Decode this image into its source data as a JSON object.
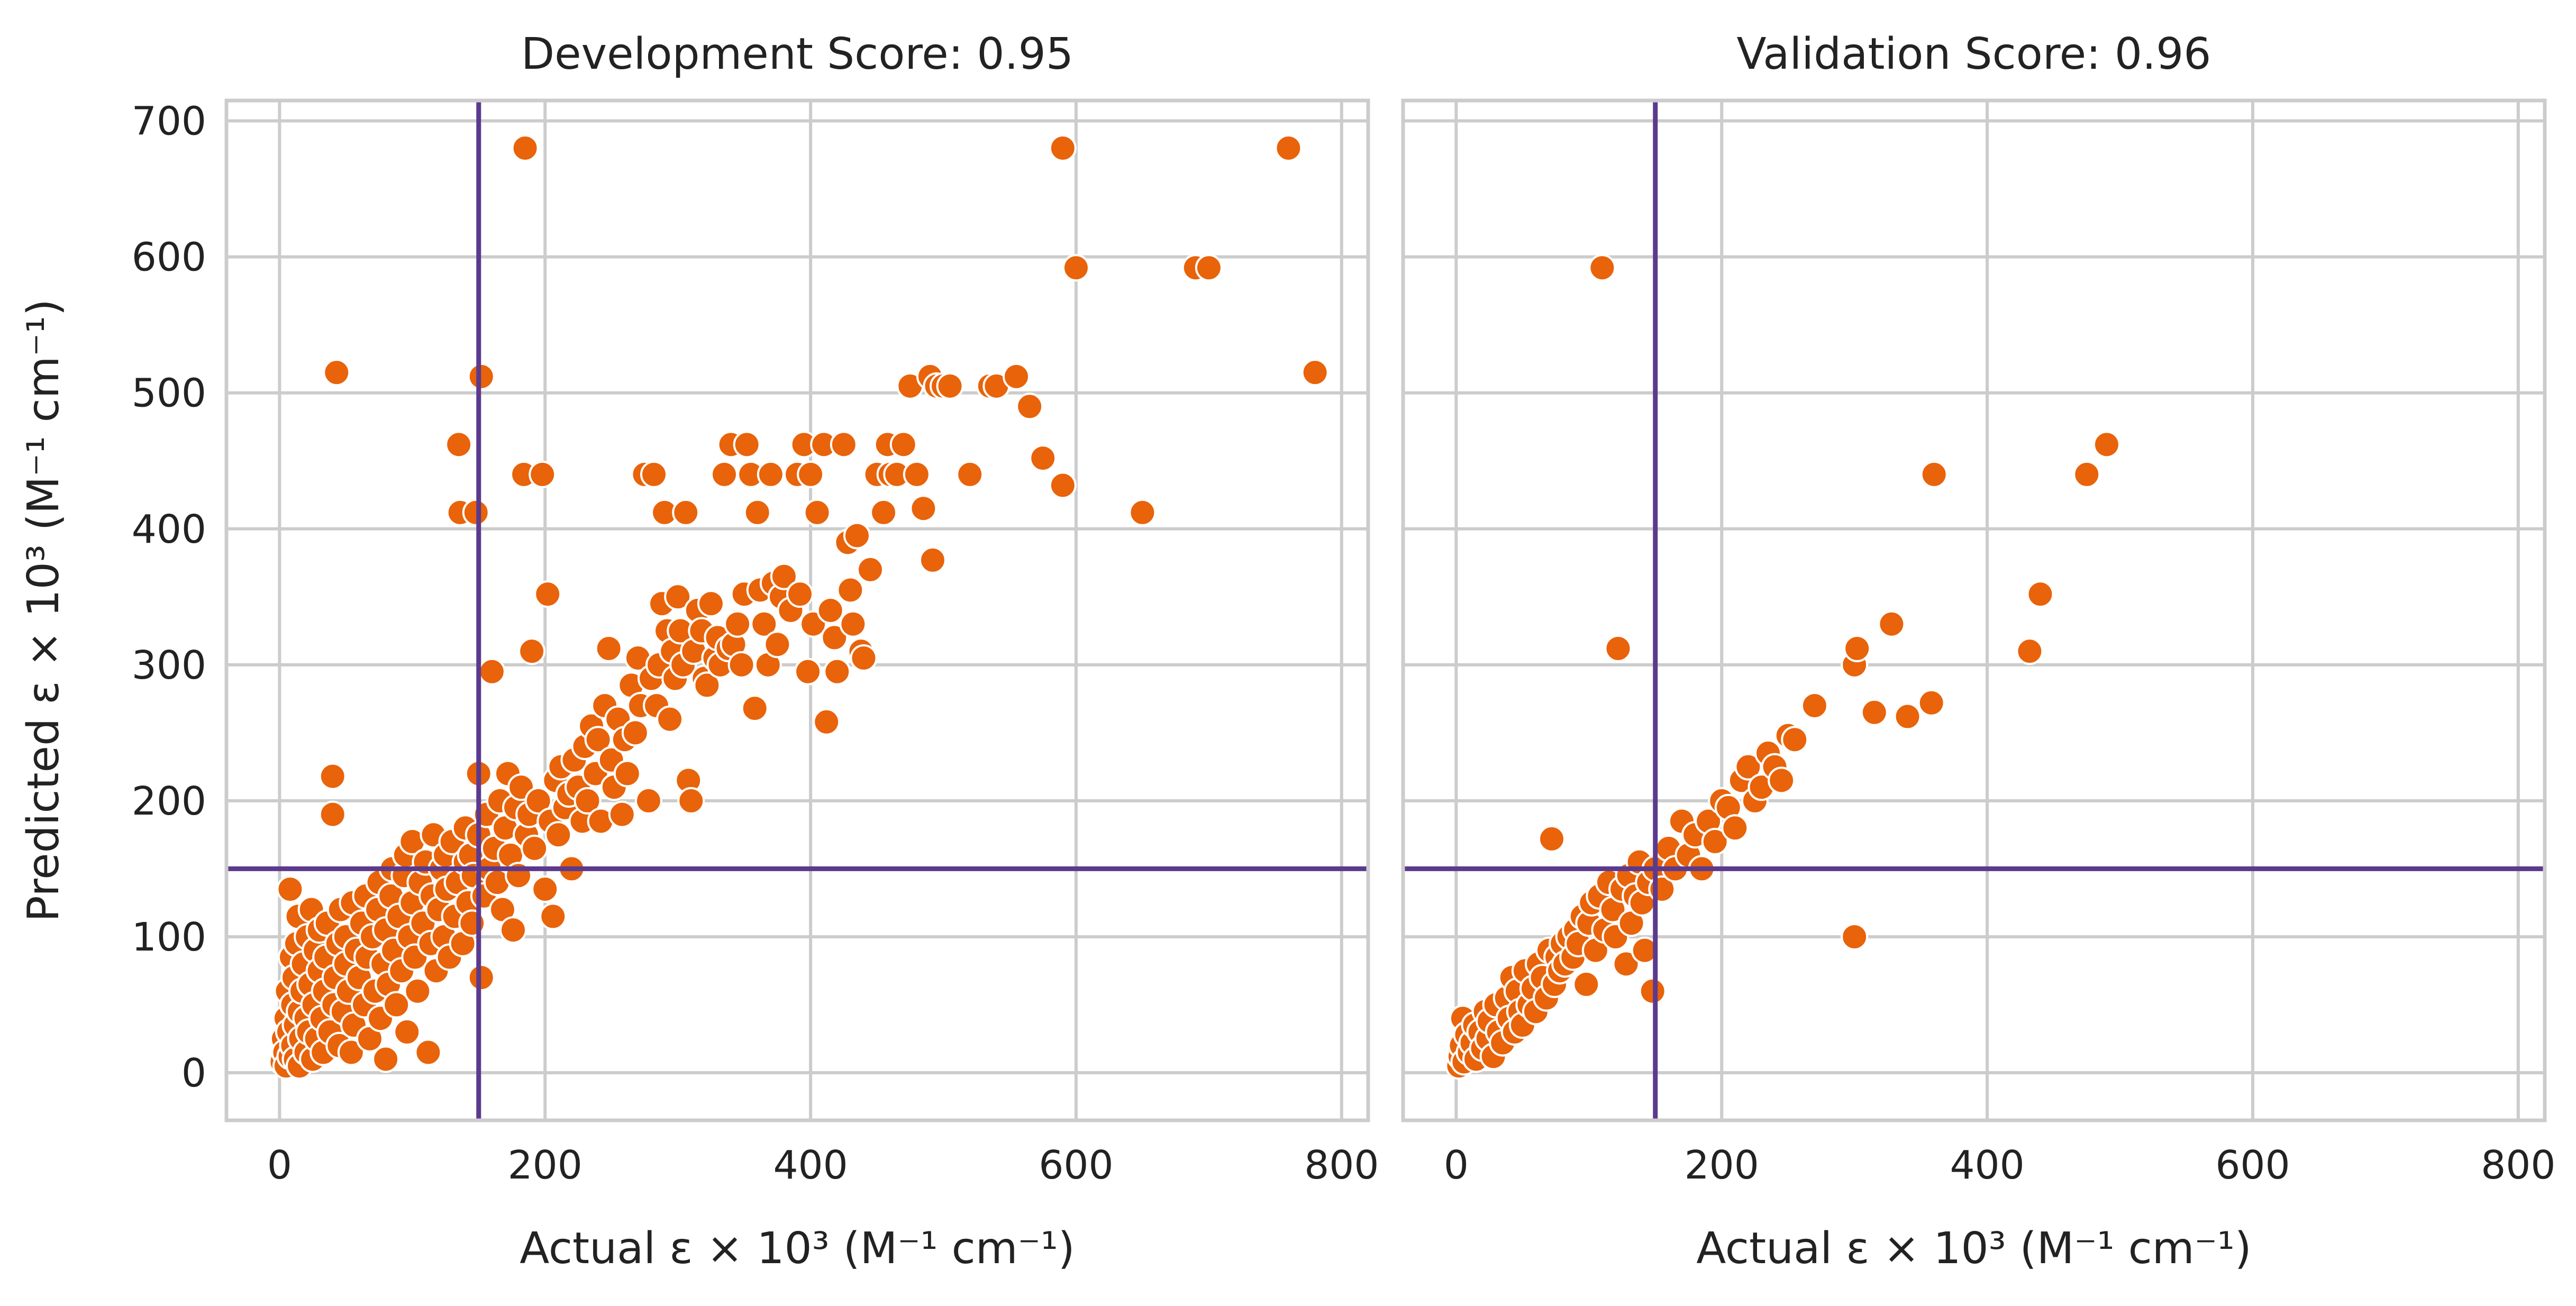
{
  "chart_data": [
    {
      "type": "scatter",
      "title": "Development Score: 0.95",
      "xlabel": "Actual ε × 10³ (M⁻¹ cm⁻¹)",
      "ylabel": "Predicted ε × 10³ (M⁻¹ cm⁻¹)",
      "xlim": [
        -40,
        820
      ],
      "ylim": [
        -35,
        715
      ],
      "xticks": [
        0,
        200,
        400,
        600,
        800
      ],
      "yticks": [
        0,
        100,
        200,
        300,
        400,
        500,
        600,
        700
      ],
      "grid": true,
      "reference_lines": {
        "x": 150,
        "y": 150,
        "color": "#5b3a8e"
      },
      "point_color": "#e8630a",
      "points": [
        [
          2,
          8
        ],
        [
          3,
          25
        ],
        [
          4,
          15
        ],
        [
          5,
          5
        ],
        [
          5,
          40
        ],
        [
          6,
          60
        ],
        [
          7,
          30
        ],
        [
          8,
          135
        ],
        [
          8,
          12
        ],
        [
          9,
          85
        ],
        [
          10,
          20
        ],
        [
          10,
          50
        ],
        [
          11,
          70
        ],
        [
          12,
          10
        ],
        [
          12,
          35
        ],
        [
          13,
          95
        ],
        [
          14,
          115
        ],
        [
          15,
          5
        ],
        [
          15,
          45
        ],
        [
          16,
          25
        ],
        [
          17,
          60
        ],
        [
          18,
          80
        ],
        [
          20,
          15
        ],
        [
          20,
          40
        ],
        [
          21,
          100
        ],
        [
          22,
          30
        ],
        [
          23,
          65
        ],
        [
          24,
          120
        ],
        [
          25,
          10
        ],
        [
          26,
          50
        ],
        [
          27,
          90
        ],
        [
          28,
          25
        ],
        [
          30,
          75
        ],
        [
          30,
          105
        ],
        [
          32,
          40
        ],
        [
          33,
          15
        ],
        [
          34,
          60
        ],
        [
          35,
          85
        ],
        [
          36,
          110
        ],
        [
          38,
          30
        ],
        [
          40,
          190
        ],
        [
          40,
          218
        ],
        [
          41,
          50
        ],
        [
          42,
          70
        ],
        [
          43,
          515
        ],
        [
          44,
          95
        ],
        [
          45,
          20
        ],
        [
          46,
          120
        ],
        [
          48,
          45
        ],
        [
          50,
          80
        ],
        [
          50,
          100
        ],
        [
          52,
          60
        ],
        [
          54,
          15
        ],
        [
          55,
          125
        ],
        [
          56,
          35
        ],
        [
          58,
          90
        ],
        [
          60,
          70
        ],
        [
          62,
          110
        ],
        [
          64,
          50
        ],
        [
          65,
          130
        ],
        [
          66,
          85
        ],
        [
          68,
          25
        ],
        [
          70,
          100
        ],
        [
          72,
          60
        ],
        [
          74,
          120
        ],
        [
          75,
          140
        ],
        [
          76,
          40
        ],
        [
          78,
          80
        ],
        [
          80,
          10
        ],
        [
          80,
          105
        ],
        [
          82,
          65
        ],
        [
          84,
          130
        ],
        [
          85,
          150
        ],
        [
          86,
          90
        ],
        [
          88,
          50
        ],
        [
          90,
          115
        ],
        [
          92,
          75
        ],
        [
          94,
          145
        ],
        [
          95,
          160
        ],
        [
          96,
          30
        ],
        [
          98,
          100
        ],
        [
          100,
          125
        ],
        [
          100,
          170
        ],
        [
          102,
          85
        ],
        [
          104,
          60
        ],
        [
          106,
          140
        ],
        [
          108,
          110
        ],
        [
          110,
          155
        ],
        [
          112,
          15
        ],
        [
          114,
          95
        ],
        [
          115,
          130
        ],
        [
          116,
          175
        ],
        [
          118,
          75
        ],
        [
          120,
          120
        ],
        [
          122,
          150
        ],
        [
          124,
          100
        ],
        [
          125,
          160
        ],
        [
          126,
          135
        ],
        [
          128,
          85
        ],
        [
          130,
          170
        ],
        [
          132,
          115
        ],
        [
          134,
          140
        ],
        [
          135,
          462
        ],
        [
          136,
          412
        ],
        [
          138,
          95
        ],
        [
          140,
          180
        ],
        [
          140,
          155
        ],
        [
          142,
          125
        ],
        [
          144,
          160
        ],
        [
          145,
          110
        ],
        [
          146,
          145
        ],
        [
          148,
          412
        ],
        [
          150,
          220
        ],
        [
          150,
          175
        ],
        [
          152,
          512
        ],
        [
          152,
          70
        ],
        [
          154,
          130
        ],
        [
          156,
          190
        ],
        [
          158,
          150
        ],
        [
          160,
          295
        ],
        [
          162,
          165
        ],
        [
          164,
          140
        ],
        [
          166,
          200
        ],
        [
          168,
          120
        ],
        [
          170,
          180
        ],
        [
          172,
          220
        ],
        [
          174,
          160
        ],
        [
          176,
          105
        ],
        [
          178,
          195
        ],
        [
          180,
          145
        ],
        [
          182,
          210
        ],
        [
          184,
          440
        ],
        [
          185,
          680
        ],
        [
          186,
          175
        ],
        [
          188,
          190
        ],
        [
          190,
          310
        ],
        [
          192,
          165
        ],
        [
          195,
          200
        ],
        [
          198,
          440
        ],
        [
          200,
          135
        ],
        [
          202,
          352
        ],
        [
          204,
          185
        ],
        [
          206,
          115
        ],
        [
          208,
          215
        ],
        [
          210,
          175
        ],
        [
          212,
          225
        ],
        [
          215,
          195
        ],
        [
          218,
          205
        ],
        [
          220,
          150
        ],
        [
          222,
          230
        ],
        [
          225,
          210
        ],
        [
          228,
          185
        ],
        [
          230,
          240
        ],
        [
          232,
          200
        ],
        [
          235,
          255
        ],
        [
          238,
          220
        ],
        [
          240,
          245
        ],
        [
          242,
          185
        ],
        [
          245,
          270
        ],
        [
          248,
          312
        ],
        [
          250,
          230
        ],
        [
          252,
          210
        ],
        [
          255,
          260
        ],
        [
          258,
          190
        ],
        [
          260,
          245
        ],
        [
          262,
          220
        ],
        [
          265,
          285
        ],
        [
          268,
          250
        ],
        [
          270,
          305
        ],
        [
          272,
          270
        ],
        [
          275,
          440
        ],
        [
          278,
          200
        ],
        [
          280,
          290
        ],
        [
          282,
          440
        ],
        [
          284,
          270
        ],
        [
          286,
          300
        ],
        [
          288,
          345
        ],
        [
          290,
          412
        ],
        [
          292,
          325
        ],
        [
          294,
          260
        ],
        [
          296,
          310
        ],
        [
          298,
          290
        ],
        [
          300,
          350
        ],
        [
          302,
          325
        ],
        [
          304,
          300
        ],
        [
          306,
          412
        ],
        [
          308,
          215
        ],
        [
          310,
          200
        ],
        [
          312,
          310
        ],
        [
          315,
          340
        ],
        [
          318,
          325
        ],
        [
          320,
          290
        ],
        [
          322,
          285
        ],
        [
          325,
          345
        ],
        [
          328,
          305
        ],
        [
          330,
          320
        ],
        [
          332,
          300
        ],
        [
          335,
          440
        ],
        [
          338,
          312
        ],
        [
          340,
          462
        ],
        [
          342,
          315
        ],
        [
          345,
          330
        ],
        [
          348,
          300
        ],
        [
          350,
          352
        ],
        [
          352,
          462
        ],
        [
          355,
          440
        ],
        [
          358,
          268
        ],
        [
          360,
          412
        ],
        [
          362,
          355
        ],
        [
          365,
          330
        ],
        [
          368,
          300
        ],
        [
          370,
          440
        ],
        [
          372,
          360
        ],
        [
          375,
          315
        ],
        [
          378,
          350
        ],
        [
          380,
          365
        ],
        [
          385,
          340
        ],
        [
          390,
          440
        ],
        [
          392,
          352
        ],
        [
          395,
          462
        ],
        [
          398,
          295
        ],
        [
          400,
          440
        ],
        [
          402,
          330
        ],
        [
          405,
          412
        ],
        [
          410,
          462
        ],
        [
          412,
          258
        ],
        [
          415,
          340
        ],
        [
          418,
          320
        ],
        [
          420,
          295
        ],
        [
          425,
          462
        ],
        [
          428,
          390
        ],
        [
          430,
          355
        ],
        [
          432,
          330
        ],
        [
          435,
          395
        ],
        [
          438,
          310
        ],
        [
          440,
          305
        ],
        [
          445,
          370
        ],
        [
          450,
          440
        ],
        [
          455,
          412
        ],
        [
          458,
          462
        ],
        [
          460,
          440
        ],
        [
          465,
          440
        ],
        [
          470,
          462
        ],
        [
          475,
          505
        ],
        [
          480,
          440
        ],
        [
          485,
          415
        ],
        [
          490,
          512
        ],
        [
          492,
          377
        ],
        [
          495,
          505
        ],
        [
          500,
          505
        ],
        [
          505,
          505
        ],
        [
          520,
          440
        ],
        [
          535,
          505
        ],
        [
          540,
          505
        ],
        [
          555,
          512
        ],
        [
          565,
          490
        ],
        [
          575,
          452
        ],
        [
          590,
          432
        ],
        [
          590,
          680
        ],
        [
          600,
          592
        ],
        [
          650,
          412
        ],
        [
          690,
          592
        ],
        [
          700,
          592
        ],
        [
          760,
          680
        ],
        [
          780,
          515
        ]
      ]
    },
    {
      "type": "scatter",
      "title": "Validation Score: 0.96",
      "xlabel": "Actual ε × 10³ (M⁻¹ cm⁻¹)",
      "ylabel": "",
      "xlim": [
        -40,
        820
      ],
      "ylim": [
        -35,
        715
      ],
      "xticks": [
        0,
        200,
        400,
        600,
        800
      ],
      "yticks": [
        0,
        100,
        200,
        300,
        400,
        500,
        600,
        700
      ],
      "grid": true,
      "reference_lines": {
        "x": 150,
        "y": 150,
        "color": "#5b3a8e"
      },
      "point_color": "#e8630a",
      "points": [
        [
          2,
          5
        ],
        [
          3,
          12
        ],
        [
          4,
          20
        ],
        [
          5,
          40
        ],
        [
          6,
          8
        ],
        [
          8,
          28
        ],
        [
          10,
          15
        ],
        [
          12,
          22
        ],
        [
          14,
          35
        ],
        [
          15,
          10
        ],
        [
          18,
          30
        ],
        [
          20,
          18
        ],
        [
          22,
          45
        ],
        [
          24,
          25
        ],
        [
          25,
          38
        ],
        [
          28,
          12
        ],
        [
          30,
          50
        ],
        [
          32,
          30
        ],
        [
          35,
          22
        ],
        [
          38,
          55
        ],
        [
          40,
          40
        ],
        [
          42,
          70
        ],
        [
          44,
          30
        ],
        [
          46,
          60
        ],
        [
          48,
          45
        ],
        [
          50,
          35
        ],
        [
          52,
          75
        ],
        [
          55,
          50
        ],
        [
          58,
          62
        ],
        [
          60,
          45
        ],
        [
          62,
          80
        ],
        [
          65,
          70
        ],
        [
          68,
          55
        ],
        [
          70,
          90
        ],
        [
          72,
          172
        ],
        [
          74,
          65
        ],
        [
          76,
          85
        ],
        [
          78,
          75
        ],
        [
          80,
          95
        ],
        [
          82,
          80
        ],
        [
          85,
          100
        ],
        [
          88,
          85
        ],
        [
          90,
          105
        ],
        [
          92,
          95
        ],
        [
          95,
          115
        ],
        [
          98,
          65
        ],
        [
          100,
          110
        ],
        [
          102,
          125
        ],
        [
          105,
          90
        ],
        [
          108,
          130
        ],
        [
          110,
          592
        ],
        [
          112,
          105
        ],
        [
          115,
          140
        ],
        [
          118,
          120
        ],
        [
          120,
          100
        ],
        [
          122,
          312
        ],
        [
          125,
          135
        ],
        [
          128,
          80
        ],
        [
          130,
          145
        ],
        [
          132,
          110
        ],
        [
          135,
          130
        ],
        [
          138,
          155
        ],
        [
          140,
          125
        ],
        [
          142,
          90
        ],
        [
          145,
          140
        ],
        [
          148,
          60
        ],
        [
          150,
          150
        ],
        [
          155,
          135
        ],
        [
          160,
          165
        ],
        [
          165,
          150
        ],
        [
          170,
          185
        ],
        [
          175,
          160
        ],
        [
          180,
          175
        ],
        [
          185,
          150
        ],
        [
          190,
          185
        ],
        [
          195,
          170
        ],
        [
          200,
          200
        ],
        [
          205,
          195
        ],
        [
          210,
          180
        ],
        [
          215,
          215
        ],
        [
          220,
          225
        ],
        [
          225,
          200
        ],
        [
          230,
          210
        ],
        [
          235,
          235
        ],
        [
          240,
          225
        ],
        [
          245,
          215
        ],
        [
          250,
          248
        ],
        [
          255,
          245
        ],
        [
          270,
          270
        ],
        [
          300,
          100
        ],
        [
          300,
          300
        ],
        [
          302,
          312
        ],
        [
          315,
          265
        ],
        [
          328,
          330
        ],
        [
          340,
          262
        ],
        [
          358,
          272
        ],
        [
          360,
          440
        ],
        [
          432,
          310
        ],
        [
          440,
          352
        ],
        [
          475,
          440
        ],
        [
          490,
          462
        ]
      ]
    }
  ]
}
